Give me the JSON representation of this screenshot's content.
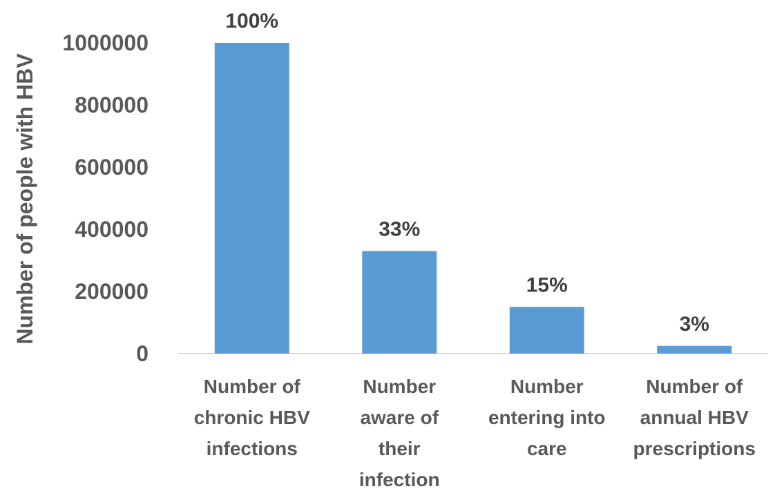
{
  "chart_data": {
    "type": "bar",
    "title": "",
    "xlabel": "",
    "ylabel": "Number of people with HBV",
    "categories": [
      [
        "Number of",
        "chronic HBV",
        "infections"
      ],
      [
        "Number",
        "aware of",
        "their",
        "infection"
      ],
      [
        "Number",
        "entering into",
        "care"
      ],
      [
        "Number of",
        "annual HBV",
        "prescriptions"
      ]
    ],
    "values": [
      1000000,
      330000,
      150000,
      25000
    ],
    "data_labels": [
      "100%",
      "33%",
      "15%",
      "3%"
    ],
    "yticks": [
      "0",
      "200000",
      "400000",
      "600000",
      "800000",
      "1000000"
    ],
    "ylim": [
      0,
      1000000
    ],
    "grid": false,
    "bar_color": "#5B9BD5",
    "axis_color": "#D9D9D9"
  }
}
